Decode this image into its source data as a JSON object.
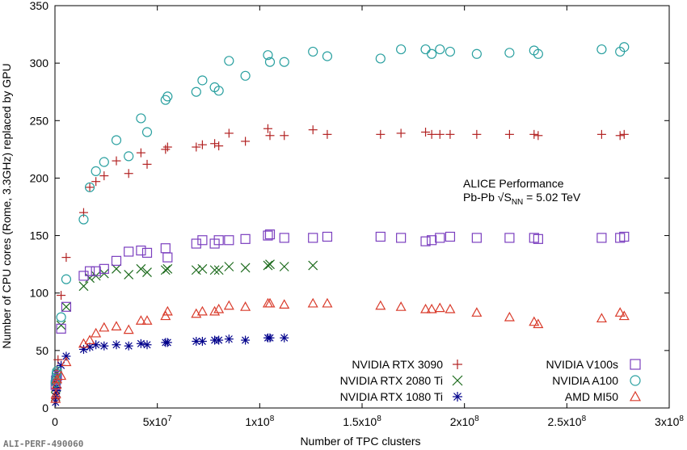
{
  "chart_data": {
    "type": "scatter",
    "xlabel": "Number of TPC clusters",
    "ylabel": "Number of CPU cores (Rome, 3.3GHz) replaced by GPU",
    "xlim": [
      0,
      300000000
    ],
    "ylim": [
      0,
      350
    ],
    "x_ticks": [
      {
        "value": 0,
        "label": "0"
      },
      {
        "value": 50000000,
        "label": "5x10⁷"
      },
      {
        "value": 100000000,
        "label": "1x10⁸"
      },
      {
        "value": 150000000,
        "label": "1.5x10⁸"
      },
      {
        "value": 200000000,
        "label": "2x10⁸"
      },
      {
        "value": 250000000,
        "label": "2.5x10⁸"
      },
      {
        "value": 300000000,
        "label": "3x10⁸"
      }
    ],
    "y_ticks": [
      0,
      50,
      100,
      150,
      200,
      250,
      300,
      350
    ],
    "annotation": {
      "line1": "ALICE Performance",
      "line2": "Pb-Pb √S",
      "sub": "NN",
      "line2_rest": " = 5.02 TeV"
    },
    "tag": "ALI-PERF-490060",
    "legend_position": "bottom-right",
    "series": [
      {
        "name": "NVIDIA RTX 3090",
        "marker": "plus",
        "color": "#b22222",
        "points": [
          [
            300000.0,
            8
          ],
          [
            500000.0,
            15
          ],
          [
            800000.0,
            25
          ],
          [
            1000000.0,
            33
          ],
          [
            1500000.0,
            42
          ],
          [
            3000000.0,
            98
          ],
          [
            5500000.0,
            131
          ],
          [
            14000000.0,
            170
          ],
          [
            17000000.0,
            192
          ],
          [
            20000000.0,
            197
          ],
          [
            24000000.0,
            202
          ],
          [
            30000000.0,
            215
          ],
          [
            36000000.0,
            204
          ],
          [
            42000000.0,
            222
          ],
          [
            45000000.0,
            212
          ],
          [
            54000000.0,
            225
          ],
          [
            55000000.0,
            227
          ],
          [
            69000000.0,
            227
          ],
          [
            72000000.0,
            229
          ],
          [
            78000000.0,
            230
          ],
          [
            80000000.0,
            228
          ],
          [
            85000000.0,
            239
          ],
          [
            93000000.0,
            232
          ],
          [
            104000000.0,
            243
          ],
          [
            105000000.0,
            237
          ],
          [
            112000000.0,
            237
          ],
          [
            126000000.0,
            242
          ],
          [
            133000000.0,
            238
          ],
          [
            159000000.0,
            238
          ],
          [
            169000000.0,
            239
          ],
          [
            181000000.0,
            240
          ],
          [
            184000000.0,
            238
          ],
          [
            188000000.0,
            238
          ],
          [
            193000000.0,
            238
          ],
          [
            206000000.0,
            238
          ],
          [
            222000000.0,
            238
          ],
          [
            234000000.0,
            238
          ],
          [
            236000000.0,
            237
          ],
          [
            267000000.0,
            238
          ],
          [
            276000000.0,
            237
          ],
          [
            278000000.0,
            238
          ]
        ]
      },
      {
        "name": "NVIDIA RTX 2080 Ti",
        "marker": "x",
        "color": "#1d6b1d",
        "points": [
          [
            300000.0,
            10
          ],
          [
            500000.0,
            18
          ],
          [
            800000.0,
            25
          ],
          [
            1000000.0,
            30
          ],
          [
            3000000.0,
            72
          ],
          [
            5500000.0,
            88
          ],
          [
            14000000.0,
            106
          ],
          [
            17000000.0,
            113
          ],
          [
            20000000.0,
            115
          ],
          [
            24000000.0,
            117
          ],
          [
            30000000.0,
            121
          ],
          [
            36000000.0,
            116
          ],
          [
            42000000.0,
            121
          ],
          [
            45000000.0,
            118
          ],
          [
            54000000.0,
            120
          ],
          [
            55000000.0,
            121
          ],
          [
            69000000.0,
            120
          ],
          [
            72000000.0,
            121
          ],
          [
            78000000.0,
            120
          ],
          [
            80000000.0,
            120
          ],
          [
            85000000.0,
            123
          ],
          [
            93000000.0,
            122
          ],
          [
            104000000.0,
            124
          ],
          [
            105000000.0,
            125
          ],
          [
            112000000.0,
            123
          ],
          [
            126000000.0,
            124
          ]
        ]
      },
      {
        "name": "NVIDIA RTX 1080 Ti",
        "marker": "asterisk",
        "color": "#00008b",
        "points": [
          [
            300000.0,
            5
          ],
          [
            500000.0,
            10
          ],
          [
            800000.0,
            15
          ],
          [
            1000000.0,
            18
          ],
          [
            3000000.0,
            37
          ],
          [
            5500000.0,
            45
          ],
          [
            14000000.0,
            51
          ],
          [
            17000000.0,
            53
          ],
          [
            20000000.0,
            55
          ],
          [
            24000000.0,
            54
          ],
          [
            30000000.0,
            55
          ],
          [
            36000000.0,
            54
          ],
          [
            42000000.0,
            56
          ],
          [
            45000000.0,
            55
          ],
          [
            54000000.0,
            57
          ],
          [
            55000000.0,
            57
          ],
          [
            69000000.0,
            58
          ],
          [
            72000000.0,
            58
          ],
          [
            78000000.0,
            59
          ],
          [
            80000000.0,
            59
          ],
          [
            85000000.0,
            60
          ],
          [
            93000000.0,
            59
          ],
          [
            104000000.0,
            61
          ],
          [
            105000000.0,
            61
          ],
          [
            112000000.0,
            61
          ]
        ]
      },
      {
        "name": "NVIDIA V100s",
        "marker": "square",
        "color": "#7b3fbf",
        "points": [
          [
            300000.0,
            20
          ],
          [
            500000.0,
            24
          ],
          [
            800000.0,
            26
          ],
          [
            1000000.0,
            28
          ],
          [
            3000000.0,
            69
          ],
          [
            5500000.0,
            88
          ],
          [
            14000000.0,
            115
          ],
          [
            17000000.0,
            119
          ],
          [
            20000000.0,
            119
          ],
          [
            24000000.0,
            121
          ],
          [
            30000000.0,
            128
          ],
          [
            36000000.0,
            136
          ],
          [
            42000000.0,
            137
          ],
          [
            45000000.0,
            135
          ],
          [
            54000000.0,
            139
          ],
          [
            55000000.0,
            131
          ],
          [
            69000000.0,
            143
          ],
          [
            72000000.0,
            146
          ],
          [
            78000000.0,
            143
          ],
          [
            80000000.0,
            146
          ],
          [
            85000000.0,
            146
          ],
          [
            93000000.0,
            147
          ],
          [
            104000000.0,
            150
          ],
          [
            105000000.0,
            151
          ],
          [
            112000000.0,
            148
          ],
          [
            126000000.0,
            148
          ],
          [
            133000000.0,
            149
          ],
          [
            159000000.0,
            149
          ],
          [
            169000000.0,
            148
          ],
          [
            181000000.0,
            145
          ],
          [
            184000000.0,
            146
          ],
          [
            188000000.0,
            148
          ],
          [
            193000000.0,
            149
          ],
          [
            206000000.0,
            148
          ],
          [
            222000000.0,
            148
          ],
          [
            234000000.0,
            148
          ],
          [
            236000000.0,
            147
          ],
          [
            267000000.0,
            148
          ],
          [
            276000000.0,
            148
          ],
          [
            278000000.0,
            149
          ]
        ]
      },
      {
        "name": "NVIDIA A100",
        "marker": "circle",
        "color": "#2aa0a0",
        "points": [
          [
            300000.0,
            22
          ],
          [
            500000.0,
            25
          ],
          [
            800000.0,
            30
          ],
          [
            1000000.0,
            32
          ],
          [
            3000000.0,
            79
          ],
          [
            5500000.0,
            112
          ],
          [
            14000000.0,
            164
          ],
          [
            17000000.0,
            192
          ],
          [
            20000000.0,
            206
          ],
          [
            24000000.0,
            214
          ],
          [
            30000000.0,
            233
          ],
          [
            36000000.0,
            219
          ],
          [
            42000000.0,
            252
          ],
          [
            45000000.0,
            240
          ],
          [
            54000000.0,
            268
          ],
          [
            55000000.0,
            271
          ],
          [
            69000000.0,
            275
          ],
          [
            72000000.0,
            285
          ],
          [
            78000000.0,
            279
          ],
          [
            80000000.0,
            276
          ],
          [
            85000000.0,
            302
          ],
          [
            93000000.0,
            289
          ],
          [
            104000000.0,
            307
          ],
          [
            105000000.0,
            301
          ],
          [
            112000000.0,
            301
          ],
          [
            126000000.0,
            310
          ],
          [
            133000000.0,
            306
          ],
          [
            159000000.0,
            304
          ],
          [
            169000000.0,
            312
          ],
          [
            181000000.0,
            312
          ],
          [
            184000000.0,
            308
          ],
          [
            188000000.0,
            312
          ],
          [
            193000000.0,
            310
          ],
          [
            206000000.0,
            308
          ],
          [
            222000000.0,
            309
          ],
          [
            234000000.0,
            311
          ],
          [
            236000000.0,
            308
          ],
          [
            267000000.0,
            312
          ],
          [
            276000000.0,
            310
          ],
          [
            278000000.0,
            314
          ]
        ]
      },
      {
        "name": "AMD MI50",
        "marker": "triangle",
        "color": "#d93b2b",
        "points": [
          [
            300000.0,
            8
          ],
          [
            500000.0,
            12
          ],
          [
            800000.0,
            20
          ],
          [
            1000000.0,
            25
          ],
          [
            3000000.0,
            28
          ],
          [
            5500000.0,
            40
          ],
          [
            14000000.0,
            56
          ],
          [
            17000000.0,
            59
          ],
          [
            20000000.0,
            65
          ],
          [
            24000000.0,
            70
          ],
          [
            30000000.0,
            71
          ],
          [
            36000000.0,
            68
          ],
          [
            42000000.0,
            76
          ],
          [
            45000000.0,
            76
          ],
          [
            54000000.0,
            80
          ],
          [
            55000000.0,
            84
          ],
          [
            69000000.0,
            82
          ],
          [
            72000000.0,
            84
          ],
          [
            78000000.0,
            84
          ],
          [
            80000000.0,
            86
          ],
          [
            85000000.0,
            89
          ],
          [
            93000000.0,
            88
          ],
          [
            104000000.0,
            91
          ],
          [
            105000000.0,
            91
          ],
          [
            112000000.0,
            90
          ],
          [
            126000000.0,
            91
          ],
          [
            133000000.0,
            91
          ],
          [
            159000000.0,
            89
          ],
          [
            169000000.0,
            88
          ],
          [
            181000000.0,
            86
          ],
          [
            184000000.0,
            86
          ],
          [
            188000000.0,
            87
          ],
          [
            193000000.0,
            86
          ],
          [
            206000000.0,
            83
          ],
          [
            222000000.0,
            79
          ],
          [
            234000000.0,
            75
          ],
          [
            236000000.0,
            73
          ],
          [
            267000000.0,
            78
          ],
          [
            276000000.0,
            83
          ],
          [
            278000000.0,
            80
          ]
        ]
      }
    ],
    "legend_layout": [
      {
        "series": 0,
        "column": "left",
        "row": 0
      },
      {
        "series": 1,
        "column": "left",
        "row": 1
      },
      {
        "series": 2,
        "column": "left",
        "row": 2
      },
      {
        "series": 3,
        "column": "right",
        "row": 0
      },
      {
        "series": 4,
        "column": "right",
        "row": 1
      },
      {
        "series": 5,
        "column": "right",
        "row": 2
      }
    ]
  }
}
